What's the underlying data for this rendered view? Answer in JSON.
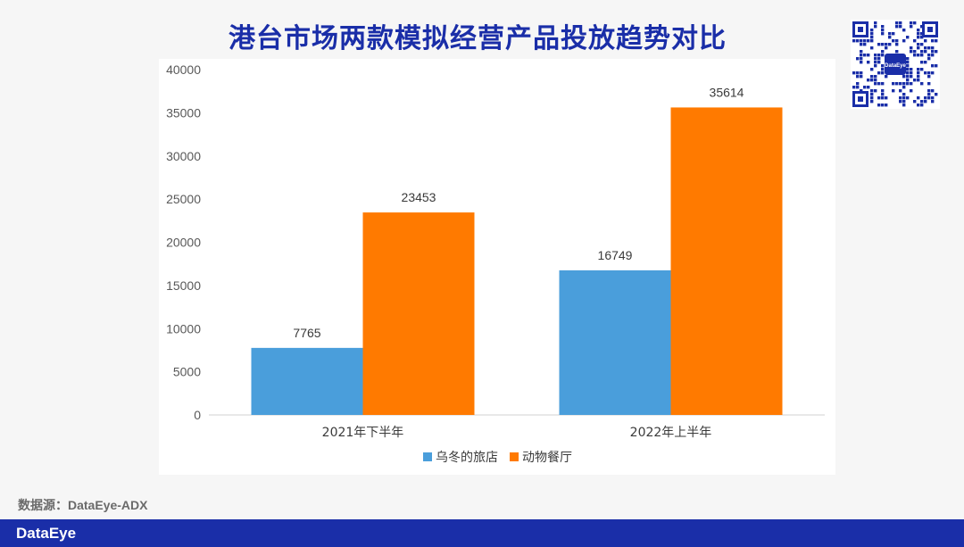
{
  "title": "港台市场两款模拟经营产品投放趋势对比",
  "source_note": "数据源：DataEye-ADX",
  "brand": "DataEye",
  "watermark": "DataEye",
  "qr_center_label": "DataEye",
  "colors": {
    "title": "#1a2ea8",
    "footer": "#1a2ea8",
    "series_1": "#4a9edb",
    "series_2": "#ff7a00"
  },
  "chart_data": {
    "type": "bar",
    "title": "",
    "xlabel": "",
    "ylabel": "",
    "categories": [
      "2021年下半年",
      "2022年上半年"
    ],
    "series": [
      {
        "name": "乌冬的旅店",
        "values": [
          7765,
          16749
        ],
        "color": "#4a9edb"
      },
      {
        "name": "动物餐厅",
        "values": [
          23453,
          35614
        ],
        "color": "#ff7a00"
      }
    ],
    "ylim": [
      0,
      40000
    ],
    "yticks": [
      0,
      5000,
      10000,
      15000,
      20000,
      25000,
      30000,
      35000,
      40000
    ],
    "grid": false,
    "data_labels": true,
    "legend_position": "bottom"
  }
}
